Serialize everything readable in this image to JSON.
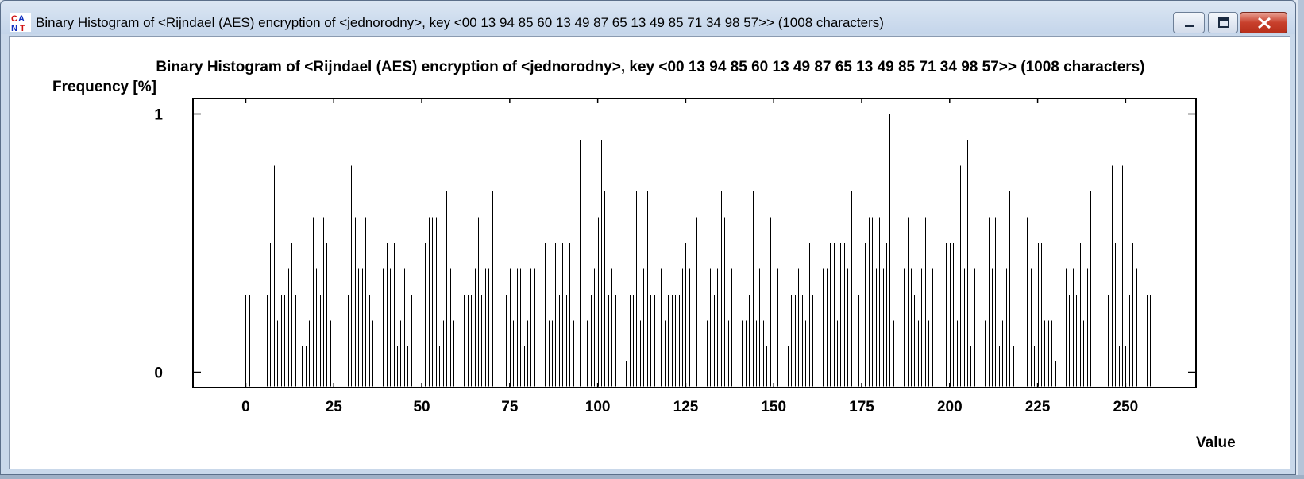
{
  "window": {
    "title": "Binary Histogram of <Rijndael (AES) encryption of <jednorodny>, key <00 13 94 85 60 13 49 87 65 13 49 85 71 34 98 57>> (1008 characters)"
  },
  "chart_data": {
    "type": "bar",
    "title": "Binary Histogram of <Rijndael (AES) encryption of <jednorodny>, key <00 13 94 85 60 13 49 87 65 13 49 85 71 34 98 57>> (1008 characters)",
    "ylabel": "Frequency [%]",
    "xlabel": "Value",
    "xlim": [
      -15,
      270
    ],
    "ylim": [
      -0.06,
      1.06
    ],
    "xticks": [
      0,
      25,
      50,
      75,
      100,
      125,
      150,
      175,
      200,
      225,
      250
    ],
    "yticks": [
      0,
      1
    ],
    "grid": false,
    "x_start": 0,
    "values": [
      0.3,
      0.3,
      0.6,
      0.4,
      0.5,
      0.6,
      0.3,
      0.5,
      0.8,
      0.2,
      0.3,
      0.3,
      0.4,
      0.5,
      0.3,
      0.9,
      0.1,
      0.1,
      0.2,
      0.6,
      0.4,
      0.3,
      0.6,
      0.5,
      0.2,
      0.2,
      0.4,
      0.3,
      0.7,
      0.3,
      0.8,
      0.6,
      0.4,
      0.4,
      0.6,
      0.3,
      0.2,
      0.5,
      0.2,
      0.4,
      0.5,
      0.4,
      0.5,
      0.1,
      0.2,
      0.4,
      0.1,
      0.3,
      0.7,
      0.5,
      0.3,
      0.5,
      0.6,
      0.6,
      0.6,
      0.1,
      0.2,
      0.7,
      0.4,
      0.2,
      0.4,
      0.2,
      0.3,
      0.3,
      0.3,
      0.4,
      0.6,
      0.3,
      0.4,
      0.4,
      0.7,
      0.1,
      0.1,
      0.2,
      0.3,
      0.4,
      0.2,
      0.4,
      0.4,
      0.1,
      0.2,
      0.4,
      0.4,
      0.7,
      0.2,
      0.5,
      0.2,
      0.2,
      0.5,
      0.3,
      0.5,
      0.3,
      0.5,
      0.2,
      0.5,
      0.9,
      0.3,
      0.2,
      0.3,
      0.4,
      0.6,
      0.9,
      0.7,
      0.3,
      0.4,
      0.3,
      0.4,
      0.3,
      0.0,
      0.3,
      0.3,
      0.7,
      0.2,
      0.4,
      0.7,
      0.3,
      0.3,
      0.2,
      0.4,
      0.2,
      0.3,
      0.3,
      0.3,
      0.3,
      0.4,
      0.5,
      0.4,
      0.5,
      0.6,
      0.4,
      0.6,
      0.2,
      0.4,
      0.3,
      0.4,
      0.7,
      0.6,
      0.2,
      0.4,
      0.3,
      0.8,
      0.2,
      0.2,
      0.3,
      0.7,
      0.2,
      0.4,
      0.2,
      0.1,
      0.6,
      0.5,
      0.4,
      0.4,
      0.5,
      0.1,
      0.3,
      0.3,
      0.4,
      0.3,
      0.2,
      0.5,
      0.3,
      0.5,
      0.4,
      0.4,
      0.4,
      0.5,
      0.5,
      0.2,
      0.5,
      0.5,
      0.4,
      0.7,
      0.3,
      0.3,
      0.3,
      0.5,
      0.6,
      0.6,
      0.4,
      0.6,
      0.4,
      0.5,
      1.0,
      0.2,
      0.4,
      0.5,
      0.4,
      0.6,
      0.4,
      0.3,
      0.2,
      0.4,
      0.6,
      0.2,
      0.4,
      0.8,
      0.5,
      0.4,
      0.5,
      0.5,
      0.5,
      0.2,
      0.8,
      0.4,
      0.9,
      0.1,
      0.4,
      0.0,
      0.1,
      0.2,
      0.6,
      0.4,
      0.6,
      0.1,
      0.2,
      0.4,
      0.7,
      0.1,
      0.2,
      0.7,
      0.1,
      0.6,
      0.4,
      0.1,
      0.5,
      0.5,
      0.2,
      0.2,
      0.2,
      0.0,
      0.2,
      0.3,
      0.4,
      0.3,
      0.4,
      0.3,
      0.5,
      0.2,
      0.4,
      0.7,
      0.1,
      0.4,
      0.4,
      0.2,
      0.3,
      0.8,
      0.5,
      0.1,
      0.8,
      0.1,
      0.3,
      0.5,
      0.4,
      0.4,
      0.5,
      0.3,
      0.3
    ]
  }
}
